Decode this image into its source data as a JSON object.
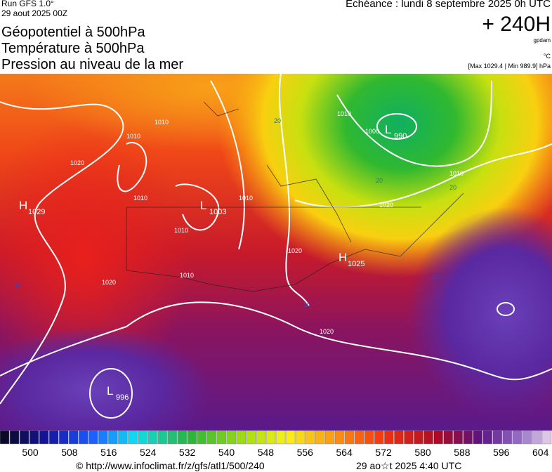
{
  "header": {
    "run": "Run GFS 1.0°",
    "date": "29 aout 2025 00Z",
    "echeance": "Echéance : lundi 8 septembre 2025 0h UTC",
    "lead": "+ 240H",
    "unit_gpdam": "gpdam",
    "unit_c": "°C",
    "extremes": "[Max 1029.4 | Min 989.9] hPa",
    "titles": [
      "Géopotentiel à 500hPa",
      "Température à 500hPa",
      "Pression au niveau de la mer"
    ]
  },
  "map": {
    "pressure_centers": [
      {
        "letter": "H",
        "value": "1029"
      },
      {
        "letter": "L",
        "value": "1003"
      },
      {
        "letter": "H",
        "value": "1025"
      },
      {
        "letter": "L",
        "value": "990"
      },
      {
        "letter": "L",
        "value": "996"
      }
    ],
    "isobar_labels": [
      "1010",
      "1010",
      "1010",
      "1010",
      "1010",
      "1010",
      "1020",
      "1020",
      "1020",
      "1020",
      "1020",
      "1000",
      "1010",
      "1010",
      "20",
      "20",
      "20",
      "10",
      "10",
      "10"
    ]
  },
  "colorbar": {
    "ticks": [
      "500",
      "508",
      "516",
      "524",
      "532",
      "540",
      "548",
      "556",
      "564",
      "572",
      "580",
      "588",
      "596",
      "604"
    ]
  },
  "footer": {
    "source": "© http://www.infoclimat.fr/z/gfs/atl1/500/240",
    "timestamp": "29 ao☆t 2025  4:40 UTC"
  }
}
